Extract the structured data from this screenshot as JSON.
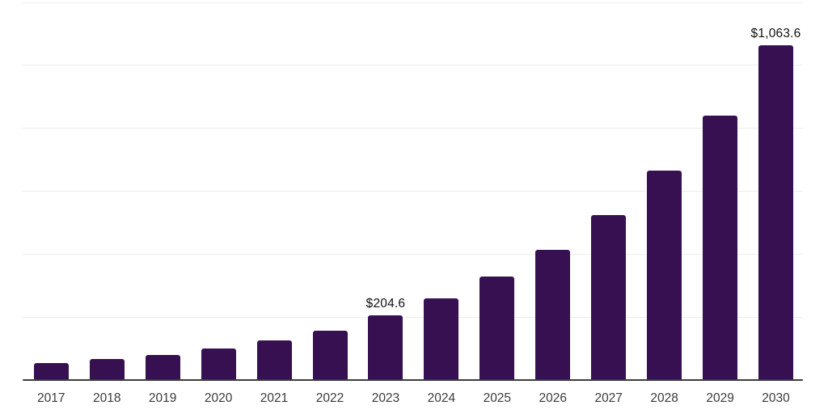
{
  "chart_data": {
    "type": "bar",
    "title": "",
    "xlabel": "",
    "ylabel": "",
    "categories": [
      "2017",
      "2018",
      "2019",
      "2020",
      "2021",
      "2022",
      "2023",
      "2024",
      "2025",
      "2026",
      "2027",
      "2028",
      "2029",
      "2030"
    ],
    "values": [
      55,
      67.5,
      79,
      99.5,
      125,
      156.5,
      204.6,
      259,
      327.8,
      414.9,
      525.1,
      664.6,
      841.2,
      1063.6
    ],
    "data_labels": [
      null,
      null,
      null,
      null,
      null,
      null,
      "$204.6",
      null,
      null,
      null,
      null,
      null,
      null,
      "$1,063.6"
    ],
    "ylim": [
      0,
      1200
    ],
    "gridline_interval": 200,
    "y_tick_labels_visible": false,
    "grid": "horizontal",
    "legend": "none"
  },
  "colors": {
    "background": "#ffffff",
    "bar": "#361051",
    "gridline": "#ededed",
    "axis_line": "#3c3c3c",
    "x_label": "#3a3a3a",
    "data_label": "#101010"
  }
}
